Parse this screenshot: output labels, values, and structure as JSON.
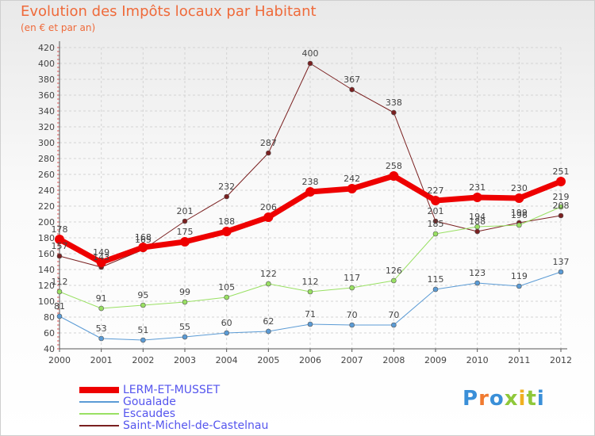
{
  "header": {
    "title": "Evolution des Impôts locaux par Habitant",
    "subtitle": "(en € et par an)"
  },
  "brand": {
    "text": "Proxiti"
  },
  "colors": {
    "title": "#ef6a3a",
    "grid": "#d4d4d4",
    "axis": "#555555",
    "label": "#444444",
    "legend_text": "#5555ee"
  },
  "chart_data": {
    "type": "line",
    "title": "Evolution des Impôts locaux par Habitant",
    "subtitle": "(en € et par an)",
    "xlabel": "",
    "ylabel": "",
    "ylim": [
      40,
      420
    ],
    "yticks": [
      40,
      60,
      80,
      100,
      120,
      140,
      160,
      180,
      200,
      220,
      240,
      260,
      280,
      300,
      320,
      340,
      360,
      380,
      400,
      420
    ],
    "grid": true,
    "legend_position": "bottom-left",
    "x": [
      "2000",
      "2001",
      "2002",
      "2003",
      "2004",
      "2005",
      "2006",
      "2007",
      "2008",
      "2009",
      "2010",
      "2011",
      "2012"
    ],
    "series": [
      {
        "name": "LERM-ET-MUSSET",
        "color": "#ee0000",
        "values": [
          178,
          149,
          168,
          175,
          188,
          206,
          238,
          242,
          258,
          227,
          231,
          230,
          251
        ]
      },
      {
        "name": "Goualade",
        "color": "#5b9bd5",
        "values": [
          81,
          53,
          51,
          55,
          60,
          62,
          71,
          70,
          70,
          115,
          123,
          119,
          137
        ]
      },
      {
        "name": "Escaudes",
        "color": "#99e063",
        "values": [
          112,
          91,
          95,
          99,
          105,
          122,
          112,
          117,
          126,
          185,
          194,
          196,
          219
        ]
      },
      {
        "name": "Saint-Michel-de-Castelnau",
        "color": "#7a2020",
        "values": [
          157,
          143,
          165,
          201,
          232,
          287,
          400,
          367,
          338,
          201,
          188,
          199,
          208
        ]
      }
    ]
  }
}
